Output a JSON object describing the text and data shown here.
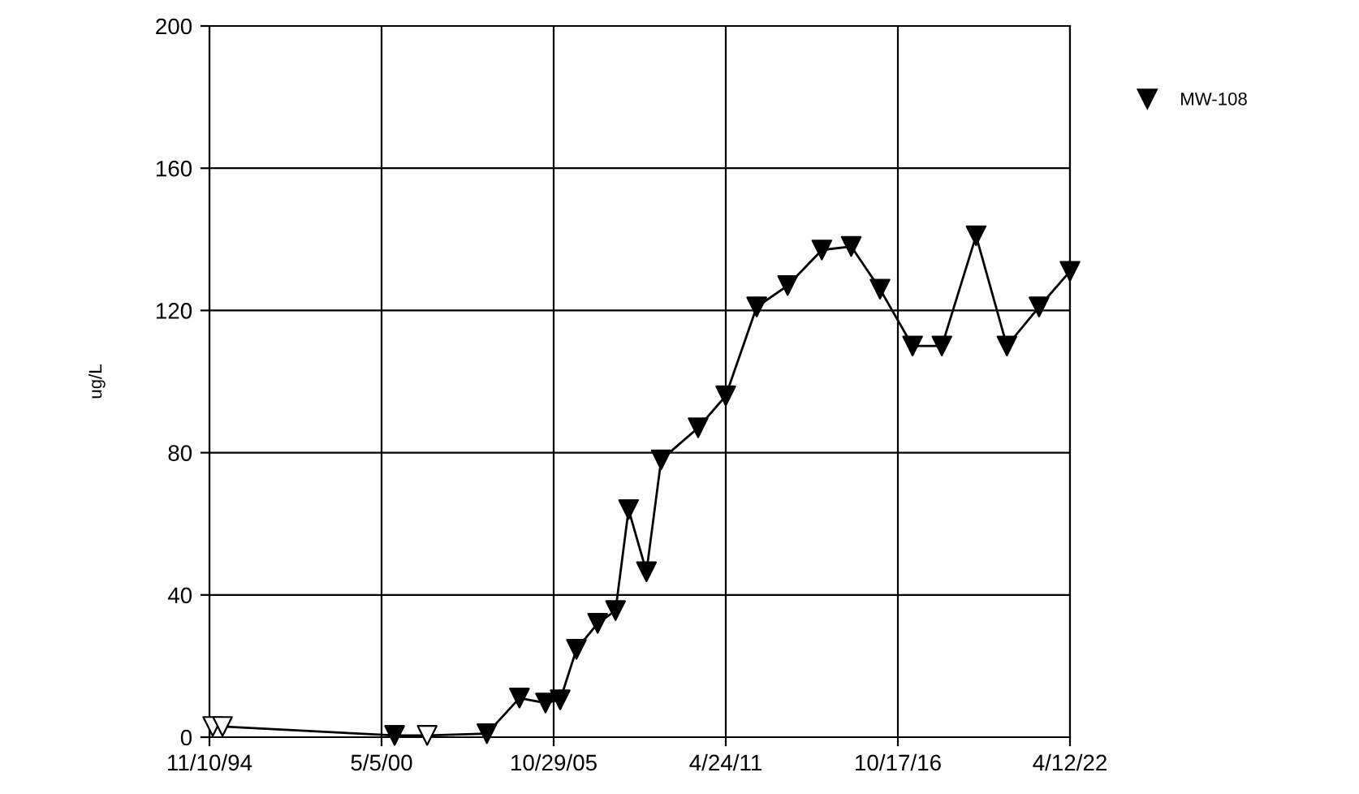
{
  "chart_data": {
    "type": "line",
    "ylabel": "ug/L",
    "xlim": [
      "1994-11-10",
      "2022-04-12"
    ],
    "xticks": [
      {
        "value": "1994-11-10",
        "label": "11/10/94"
      },
      {
        "value": "2000-05-05",
        "label": "5/5/00"
      },
      {
        "value": "2005-10-29",
        "label": "10/29/05"
      },
      {
        "value": "2011-04-24",
        "label": "4/24/11"
      },
      {
        "value": "2016-10-17",
        "label": "10/17/16"
      },
      {
        "value": "2022-04-12",
        "label": "4/12/22"
      }
    ],
    "ylim": [
      0,
      200
    ],
    "yticks": [
      0,
      40,
      80,
      120,
      160,
      200
    ],
    "grid": true,
    "legend": "right",
    "marker": "triangle",
    "line_style": "solid",
    "series": [
      {
        "name": "MW-108",
        "color": "#000000",
        "x": [
          "1994-12-18",
          "1995-04-11",
          "2000-10-04",
          "2001-10-18",
          "2003-09-13",
          "2004-09-26",
          "2005-07-26",
          "2006-01-13",
          "2006-07-21",
          "2007-03-25",
          "2007-10-19",
          "2008-03-19",
          "2008-10-13",
          "2009-04-02",
          "2010-06-06",
          "2011-04-24",
          "2012-04-18",
          "2013-04-13",
          "2014-05-16",
          "2015-04-23",
          "2016-03-23",
          "2017-04-06",
          "2018-03-13",
          "2019-04-15",
          "2020-04-08",
          "2021-04-17",
          "2022-04-12"
        ],
        "values": [
          3,
          3,
          0.5,
          0.5,
          1,
          11,
          9.6,
          10.5,
          24.7,
          32,
          35.6,
          64,
          46.5,
          78,
          87,
          96,
          121,
          127,
          137,
          138,
          126,
          110,
          110,
          141,
          110,
          121,
          131
        ],
        "colors": [
          "#ffffff",
          "#ffffff",
          "#000000",
          "#ffffff",
          "#000000",
          "#000000",
          "#000000",
          "#000000",
          "#000000",
          "#000000",
          "#000000",
          "#000000",
          "#000000",
          "#000000",
          "#000000",
          "#000000",
          "#000000",
          "#000000",
          "#000000",
          "#000000",
          "#000000",
          "#000000",
          "#000000",
          "#000000",
          "#000000",
          "#000000",
          "#000000"
        ]
      }
    ]
  }
}
